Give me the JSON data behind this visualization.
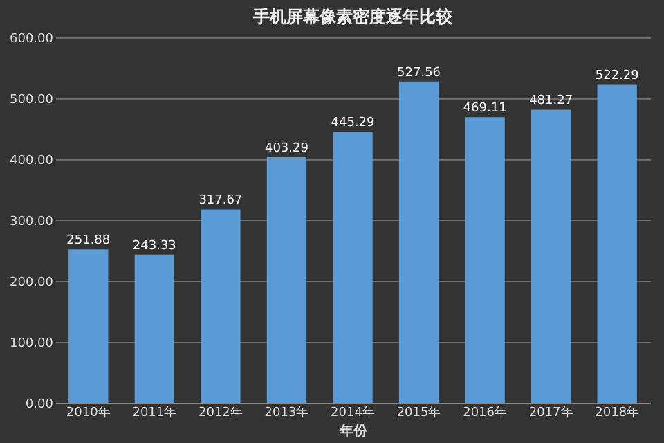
{
  "chart_data": {
    "type": "bar",
    "title": "手机屏幕像素密度逐年比较",
    "xlabel": "年份",
    "categories": [
      "2010年",
      "2011年",
      "2012年",
      "2013年",
      "2014年",
      "2015年",
      "2016年",
      "2017年",
      "2018年"
    ],
    "values": [
      251.88,
      243.33,
      317.67,
      403.29,
      445.29,
      527.56,
      469.11,
      481.27,
      522.29
    ],
    "color": "#5b9bd5",
    "ylim": [
      0,
      600
    ],
    "yticks": [
      {
        "value": 0,
        "label": "0.00"
      },
      {
        "value": 100,
        "label": "100.00"
      },
      {
        "value": 200,
        "label": "200.00"
      },
      {
        "value": 300,
        "label": "300.00"
      },
      {
        "value": 400,
        "label": "400.00"
      },
      {
        "value": 500,
        "label": "500.00"
      },
      {
        "value": 600,
        "label": "600.00"
      }
    ],
    "grid": "y",
    "data_labels": true
  }
}
